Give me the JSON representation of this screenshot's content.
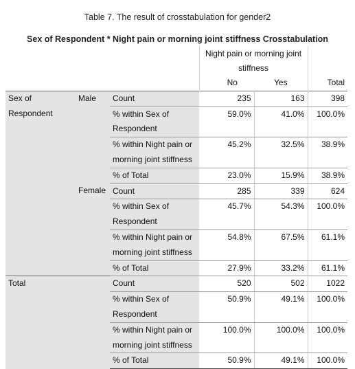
{
  "caption": "Table 7. The result of crosstabulation for gender2",
  "title": "Sex of Respondent * Night pain or morning joint stiffness Crosstabulation",
  "header": {
    "span_label": "Night pain or morning joint stiffness",
    "col_no": "No",
    "col_yes": "Yes",
    "col_total": "Total"
  },
  "groups": [
    {
      "outer": "Sex of Respondent",
      "inner": "Male",
      "rows": [
        {
          "label": "Count",
          "no": "235",
          "yes": "163",
          "total": "398"
        },
        {
          "label": "% within Sex of Respondent",
          "no": "59.0%",
          "yes": "41.0%",
          "total": "100.0%"
        },
        {
          "label": "% within Night pain or morning joint stiffness",
          "no": "45.2%",
          "yes": "32.5%",
          "total": "38.9%"
        },
        {
          "label": "% of Total",
          "no": "23.0%",
          "yes": "15.9%",
          "total": "38.9%"
        }
      ]
    },
    {
      "outer": "",
      "inner": "Female",
      "rows": [
        {
          "label": "Count",
          "no": "285",
          "yes": "339",
          "total": "624"
        },
        {
          "label": "% within Sex of Respondent",
          "no": "45.7%",
          "yes": "54.3%",
          "total": "100.0%"
        },
        {
          "label": "% within Night pain or morning joint stiffness",
          "no": "54.8%",
          "yes": "67.5%",
          "total": "61.1%"
        },
        {
          "label": "% of Total",
          "no": "27.9%",
          "yes": "33.2%",
          "total": "61.1%"
        }
      ]
    },
    {
      "outer": "Total",
      "inner": "",
      "rows": [
        {
          "label": "Count",
          "no": "520",
          "yes": "502",
          "total": "1022"
        },
        {
          "label": "% within Sex of Respondent",
          "no": "50.9%",
          "yes": "49.1%",
          "total": "100.0%"
        },
        {
          "label": "% within Night pain or morning joint stiffness",
          "no": "100.0%",
          "yes": "100.0%",
          "total": "100.0%"
        },
        {
          "label": "% of Total",
          "no": "50.9%",
          "yes": "49.1%",
          "total": "100.0%"
        }
      ]
    }
  ]
}
